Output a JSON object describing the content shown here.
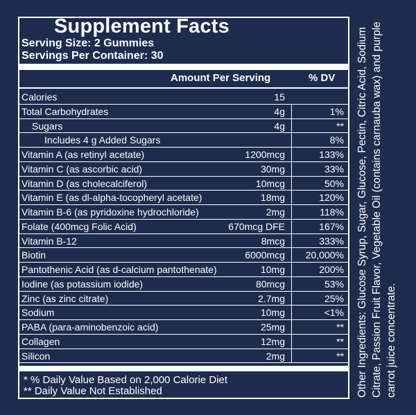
{
  "title": "Supplement Facts",
  "serving_size": "Serving Size:  2 Gummies",
  "servings_per_container": "Servings Per Container: 30",
  "header": {
    "amount_label": "Amount Per Serving",
    "dv_label": "% DV"
  },
  "rows": [
    {
      "label": "Calories",
      "amount": "15",
      "dv": "",
      "indent": 0
    },
    {
      "label": "Total Carbohydrates",
      "amount": "4g",
      "dv": "1%",
      "indent": 0
    },
    {
      "label": "Sugars",
      "amount": "4g",
      "dv": "**",
      "indent": 1
    },
    {
      "label": "Includes 4 g Added Sugars",
      "amount": "",
      "dv": "8%",
      "indent": 2
    },
    {
      "label": "Vitamin A (as retinyl acetate)",
      "amount": "1200mcg",
      "dv": "133%",
      "indent": 0
    },
    {
      "label": "Vitamin C (as ascorbic acid)",
      "amount": "30mg",
      "dv": "33%",
      "indent": 0
    },
    {
      "label": "Vitamin D (as cholecalciferol)",
      "amount": "10mcg",
      "dv": "50%",
      "indent": 0
    },
    {
      "label": "Vitamin E (as dl-alpha-tocopheryl acetate)",
      "amount": "18mg",
      "dv": "120%",
      "indent": 0
    },
    {
      "label": "Vitamin B-6 (as pyridoxine hydrochloride)",
      "amount": "2mg",
      "dv": "118%",
      "indent": 0
    },
    {
      "label": "Folate (400mcg Folic Acid)",
      "amount": "670mcg DFE",
      "dv": "167%",
      "indent": 0
    },
    {
      "label": "Vitamin B-12",
      "amount": "8mcg",
      "dv": "333%",
      "indent": 0
    },
    {
      "label": "Biotin",
      "amount": "6000mcg",
      "dv": "20,000%",
      "indent": 0
    },
    {
      "label": "Pantothenic Acid (as d-calcium pantothenate)",
      "amount": "10mg",
      "dv": "200%",
      "indent": 0
    },
    {
      "label": "Iodine (as potassium iodide)",
      "amount": "80mcg",
      "dv": "53%",
      "indent": 0
    },
    {
      "label": "Zinc (as zinc citrate)",
      "amount": "2.7mg",
      "dv": "25%",
      "indent": 0
    },
    {
      "label": "Sodium",
      "amount": "10mg",
      "dv": "<1%",
      "indent": 0
    },
    {
      "label": "PABA (para-aminobenzoic acid)",
      "amount": "25mg",
      "dv": "**",
      "indent": 0
    },
    {
      "label": "Collagen",
      "amount": "12mg",
      "dv": "**",
      "indent": 0
    },
    {
      "label": "Silicon",
      "amount": "2mg",
      "dv": "**",
      "indent": 0
    }
  ],
  "footnotes": [
    "* % Daily Value Based on 2,000 Calorie Diet",
    "** Daily Value Not Established"
  ],
  "ingredients": "Other Ingredients: Glucose Syrup, Sugar, Glucose, Pectin, Citric Acid, Sodium Citrate, Passion Fruit Flavor, Vegetable Oil (contains carnauba wax) and purple carrot juice concentrate.",
  "colors": {
    "background": "#1d2c4d",
    "text": "#ffffff"
  }
}
